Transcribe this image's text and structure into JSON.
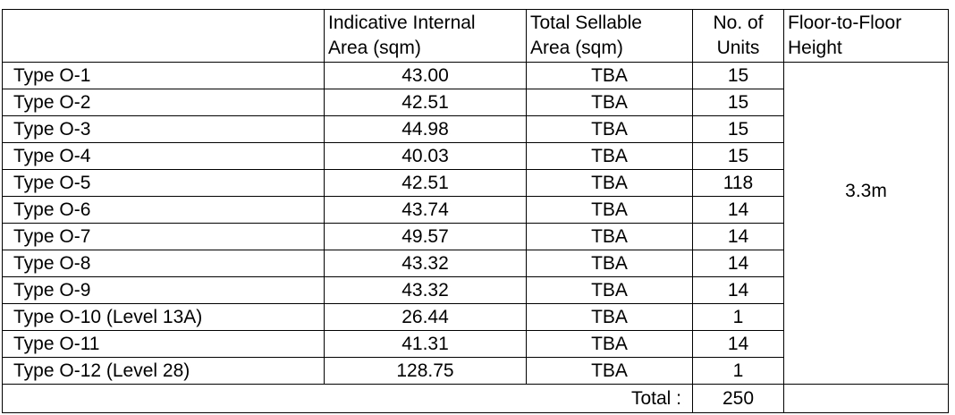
{
  "headers": {
    "col0": "",
    "internal_area_l1": "Indicative Internal",
    "internal_area_l2": "Area (sqm)",
    "sellable_area_l1": "Total Sellable",
    "sellable_area_l2": "Area (sqm)",
    "units_l1": "No. of",
    "units_l2": "Units",
    "height_l1": "Floor-to-Floor",
    "height_l2": "Height"
  },
  "rows": [
    {
      "type": "Type O-1",
      "area": "43.00",
      "sellable": "TBA",
      "units": "15"
    },
    {
      "type": "Type O-2",
      "area": "42.51",
      "sellable": "TBA",
      "units": "15"
    },
    {
      "type": "Type O-3",
      "area": "44.98",
      "sellable": "TBA",
      "units": "15"
    },
    {
      "type": "Type O-4",
      "area": "40.03",
      "sellable": "TBA",
      "units": "15"
    },
    {
      "type": "Type O-5",
      "area": "42.51",
      "sellable": "TBA",
      "units": "118"
    },
    {
      "type": "Type O-6",
      "area": "43.74",
      "sellable": "TBA",
      "units": "14"
    },
    {
      "type": "Type O-7",
      "area": "49.57",
      "sellable": "TBA",
      "units": "14"
    },
    {
      "type": "Type O-8",
      "area": "43.32",
      "sellable": "TBA",
      "units": "14"
    },
    {
      "type": "Type O-9",
      "area": "43.32",
      "sellable": "TBA",
      "units": "14"
    },
    {
      "type": "Type O-10 (Level 13A)",
      "area": "26.44",
      "sellable": "TBA",
      "units": "1"
    },
    {
      "type": "Type O-11",
      "area": "41.31",
      "sellable": "TBA",
      "units": "14"
    },
    {
      "type": "Type O-12 (Level 28)",
      "area": "128.75",
      "sellable": "TBA",
      "units": "1"
    }
  ],
  "floor_height": "3.3m",
  "total": {
    "label": "Total :",
    "value": "250"
  }
}
